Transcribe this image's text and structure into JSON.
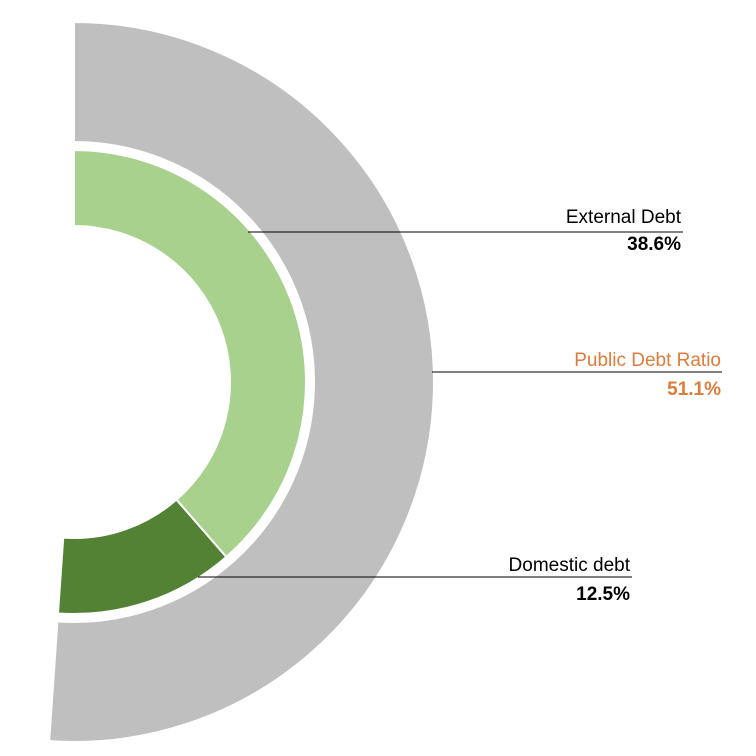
{
  "chart_data": {
    "type": "donut",
    "title": "",
    "outer_ring": {
      "name": "Public Debt Ratio",
      "value": 51.1,
      "label_value": "51.1%",
      "color": "#bfbfbf",
      "label_color": "#e07b39"
    },
    "inner_ring": {
      "slices": [
        {
          "name": "External Debt",
          "value": 38.6,
          "label_value": "38.6%",
          "color": "#a9d18e"
        },
        {
          "name": "Domestic debt",
          "value": 12.5,
          "label_value": "12.5%",
          "color": "#548235"
        }
      ]
    },
    "max_value": 100
  }
}
